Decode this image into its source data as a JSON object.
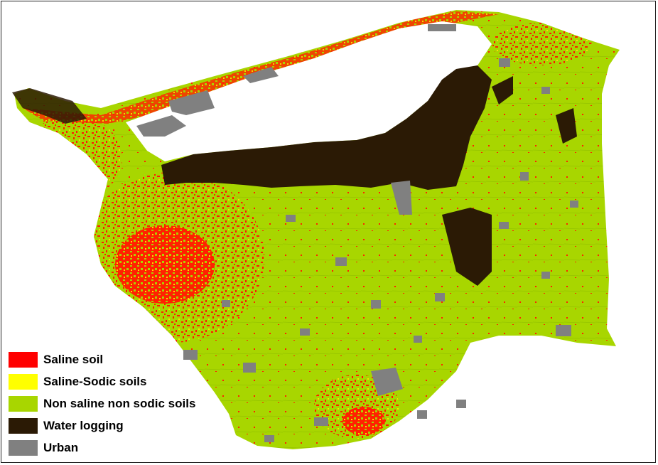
{
  "legend": {
    "items": [
      {
        "label": "Saline soil",
        "color": "#ff0000"
      },
      {
        "label": "Saline-Sodic soils",
        "color": "#ffff00"
      },
      {
        "label": "Non saline non sodic soils",
        "color": "#a8d600"
      },
      {
        "label": "Water logging",
        "color": "#2b1a05"
      },
      {
        "label": "Urban",
        "color": "#808080"
      }
    ]
  }
}
